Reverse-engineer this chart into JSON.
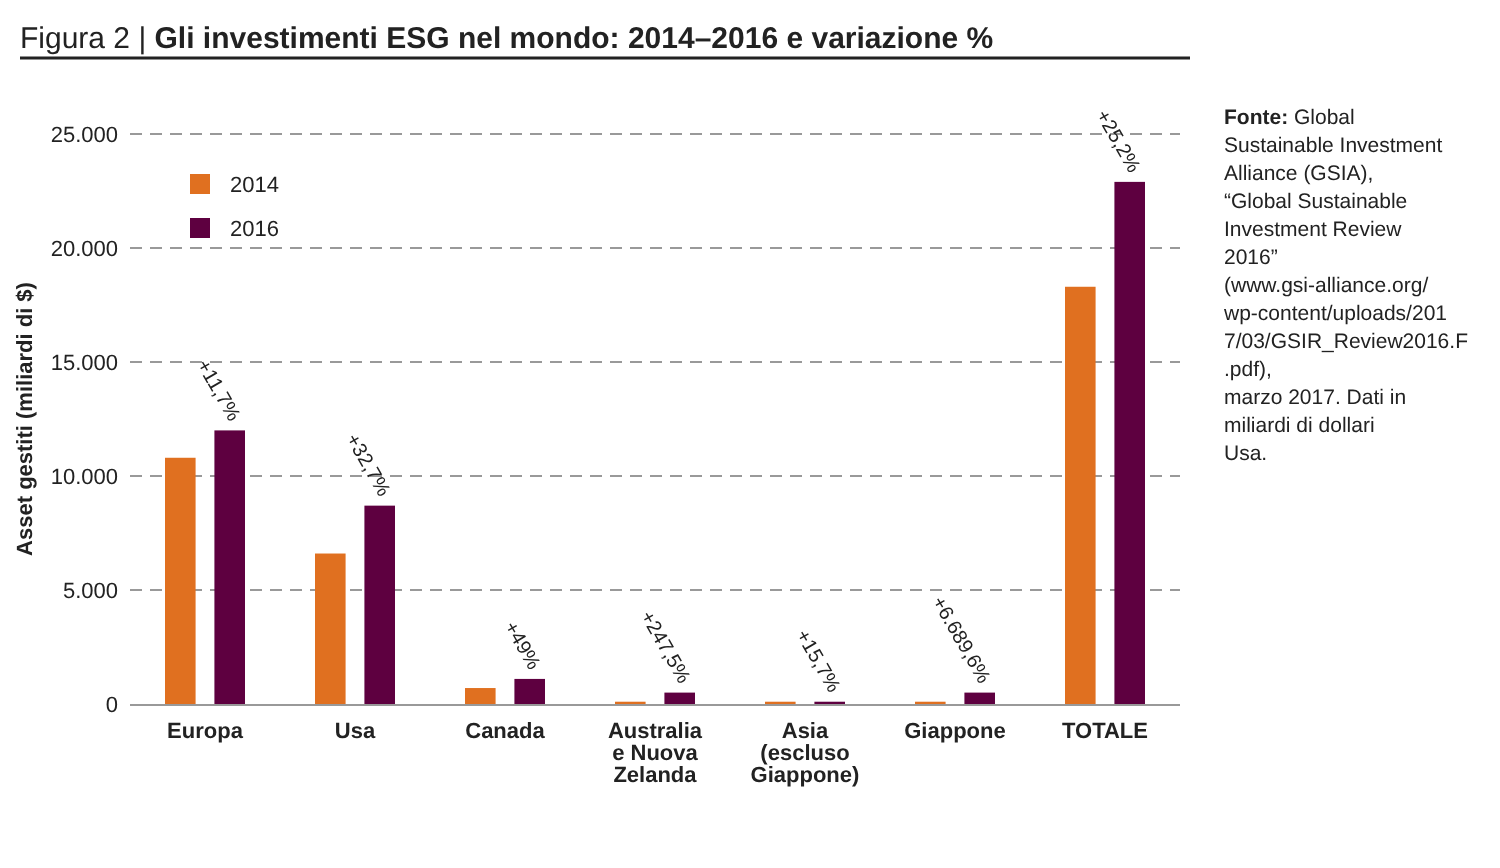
{
  "chart_data": {
    "type": "bar",
    "subtitle": "Figura 2 |",
    "title": "Gli investimenti ESG nel mondo: 2014–2016 e variazione %",
    "ylabel": "Asset gestiti (miliardi di $)",
    "categories": [
      "Europa",
      "Usa",
      "Canada",
      "Australia e Nuova Zelanda",
      "Asia (escluso Giappone)",
      "Giappone",
      "TOTALE"
    ],
    "series": [
      {
        "name": "2014",
        "color": "#e07020",
        "values": [
          10800,
          6600,
          700,
          100,
          100,
          100,
          18300
        ]
      },
      {
        "name": "2016",
        "color": "#5e0040",
        "values": [
          12000,
          8700,
          1100,
          500,
          100,
          500,
          22900
        ]
      }
    ],
    "ylim": [
      0,
      25000
    ],
    "yticks": [
      0,
      {
        "value": 5000,
        "label": "5.000"
      },
      {
        "value": 10000,
        "label": "10.000"
      },
      {
        "value": 15000,
        "label": "15.000"
      },
      {
        "value": 20000,
        "label": "20.000"
      },
      {
        "value": 25000,
        "label": "25.000"
      }
    ],
    "grid": "y",
    "legend": "top left",
    "annotations": [
      "+11,7%",
      "+32,7%",
      "+49%",
      "+247,5%",
      "+15,7%",
      "+6.689,6%",
      "+25,2%",
      "Fonte: Global Sustainable Investment Alliance (GSIA), “Global Sustainable Investment Review 2016” (www.gsi-alliance.org/wp-content/uploads/2017/03/GSIR_Review2016.F.pdf), marzo 2017. Dati in miliardi di dollari Usa."
    ]
  }
}
